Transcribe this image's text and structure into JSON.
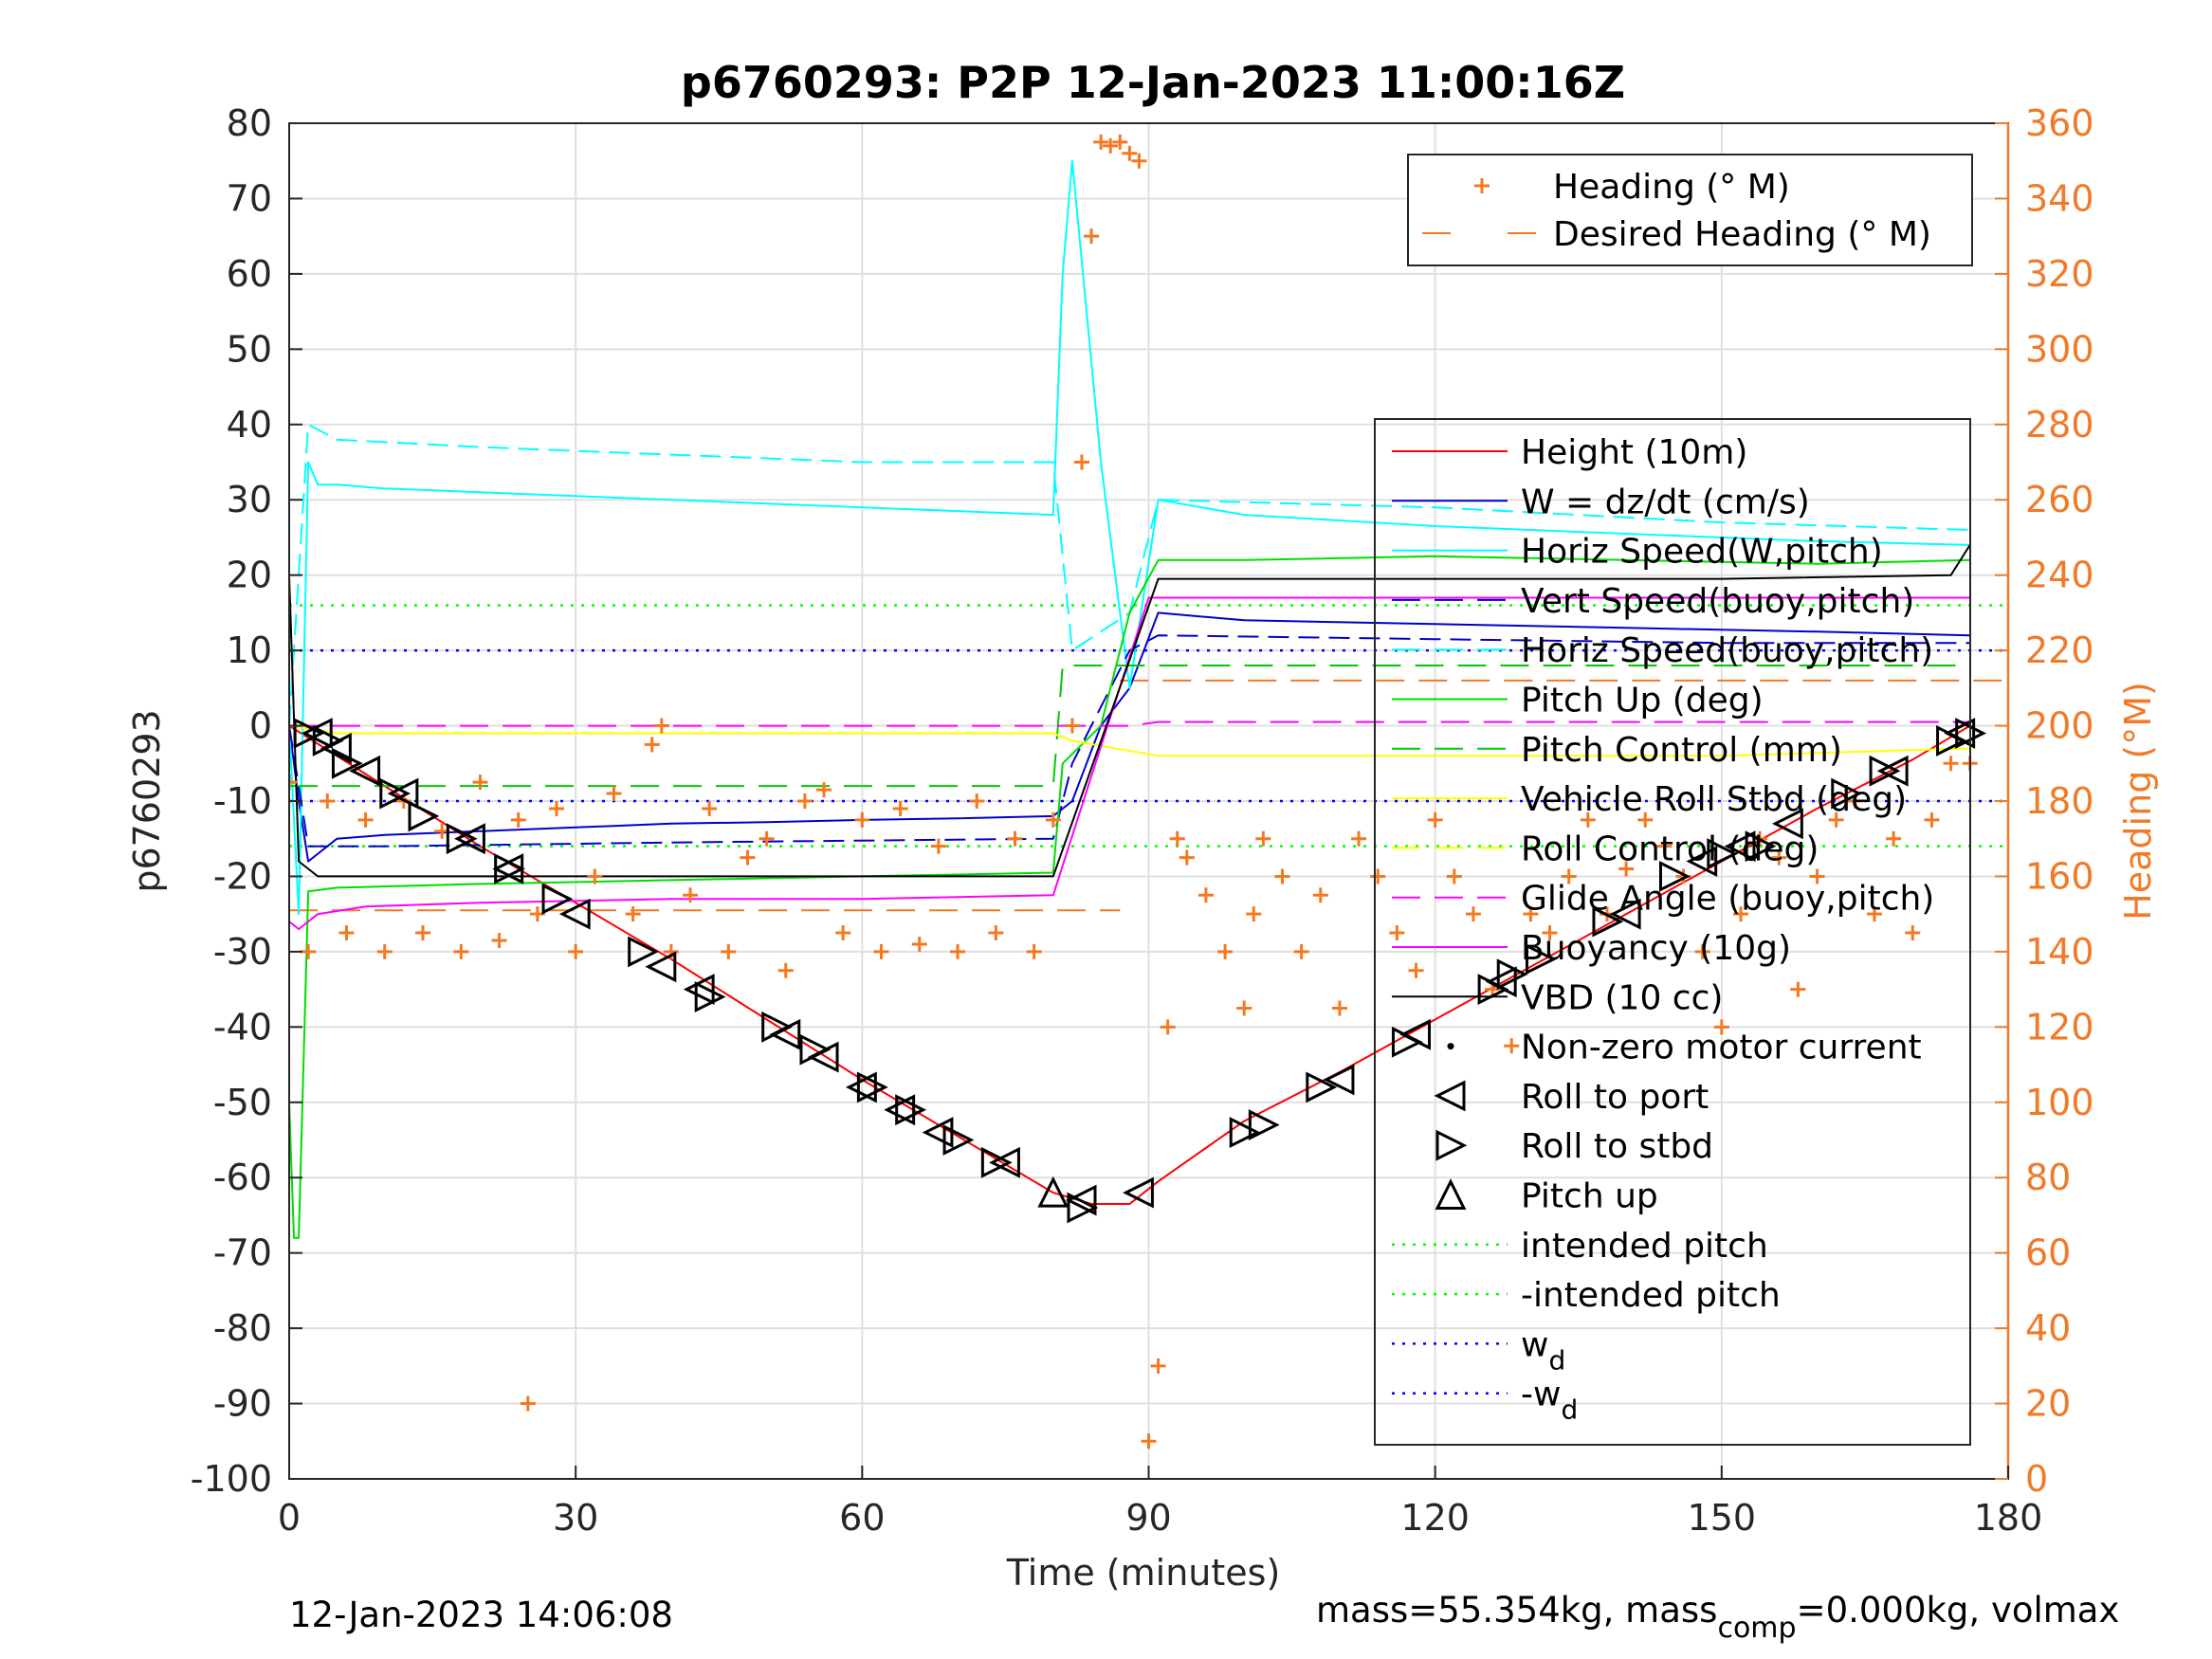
{
  "title": "p6760293: P2P 12-Jan-2023 11:00:16Z",
  "footer_left": "12-Jan-2023 14:06:08",
  "footer_right": {
    "pre": "mass=55.354kg, mass",
    "sub": "comp",
    "post": "=0.000kg, volmax"
  },
  "colors": {
    "heading": "#f57820",
    "height": "#ff0000",
    "w": "#0000cc",
    "horiz_speed_w": "#00dd00",
    "vert_speed_buoy": "#ff00ff",
    "horiz_speed_buoy": "#00ffff",
    "pitch": "#00cc00",
    "roll": "#ffff00",
    "glide": "#ff00ff",
    "buoyancy": "#ff00ff",
    "vbd": "#000000",
    "intended_pitch": "#00ff00",
    "wd": "#0000ff"
  },
  "legend_heading": [
    {
      "label": "Heading (° M)",
      "style": "plus",
      "color": "#f57820"
    },
    {
      "label": "Desired Heading (° M)",
      "style": "dash",
      "color": "#f57820"
    }
  ],
  "legend_main": [
    {
      "label": "Height (10m)",
      "style": "line",
      "color": "#ff0000"
    },
    {
      "label": "W = dz/dt (cm/s)",
      "style": "line",
      "color": "#0000cc"
    },
    {
      "label": "Horiz Speed(W,pitch)",
      "style": "line",
      "color": "#00ffff"
    },
    {
      "label": "Vert Speed(buoy,pitch)",
      "style": "dash",
      "color": "#0000cc"
    },
    {
      "label": "Horiz Speed(buoy,pitch)",
      "style": "dash",
      "color": "#00ffff"
    },
    {
      "label": "Pitch Up (deg)",
      "style": "line",
      "color": "#00dd00"
    },
    {
      "label": "Pitch Control (mm)",
      "style": "dash",
      "color": "#00cc00"
    },
    {
      "label": "Vehicle Roll Stbd (deg)",
      "style": "line",
      "color": "#ffff00"
    },
    {
      "label": "Roll Control (deg)",
      "style": "dash",
      "color": "#ffff00"
    },
    {
      "label": "Glide Angle (buoy,pitch)",
      "style": "dash",
      "color": "#ff00ff"
    },
    {
      "label": "Buoyancy (10g)",
      "style": "line",
      "color": "#ff00ff"
    },
    {
      "label": "VBD (10 cc)",
      "style": "line",
      "color": "#000000"
    },
    {
      "label": "Non-zero motor current",
      "style": "dot",
      "color": "#000000"
    },
    {
      "label": "Roll to port",
      "style": "tri-left",
      "color": "#000000"
    },
    {
      "label": "Roll to stbd",
      "style": "tri-right",
      "color": "#000000"
    },
    {
      "label": "Pitch up",
      "style": "tri-up",
      "color": "#000000"
    },
    {
      "label": "intended pitch",
      "style": "dot-line",
      "color": "#00ff00"
    },
    {
      "label": "-intended pitch",
      "style": "dot-line",
      "color": "#00ff00"
    },
    {
      "label": "w",
      "sub": "d",
      "style": "dot-line",
      "color": "#0000ff"
    },
    {
      "label": "-w",
      "sub": "d",
      "style": "dot-line",
      "color": "#0000ff"
    }
  ],
  "chart_data": {
    "type": "line",
    "title": "p6760293: P2P 12-Jan-2023 11:00:16Z",
    "xlabel": "Time (minutes)",
    "ylabel": "p6760293",
    "y2label": "Heading (°M)",
    "xlim": [
      0,
      180
    ],
    "ylim": [
      -100,
      80
    ],
    "y2lim": [
      0,
      360
    ],
    "xticks": [
      0,
      30,
      60,
      90,
      120,
      150,
      180
    ],
    "yticks": [
      -100,
      -90,
      -80,
      -70,
      -60,
      -50,
      -40,
      -30,
      -20,
      -10,
      0,
      10,
      20,
      30,
      40,
      50,
      60,
      70,
      80
    ],
    "y2ticks": [
      0,
      20,
      40,
      60,
      80,
      100,
      120,
      140,
      160,
      180,
      200,
      220,
      240,
      260,
      280,
      300,
      320,
      340,
      360
    ],
    "grid": true,
    "legend_placement": "right (inside)",
    "reference_lines": {
      "intended_pitch": 16,
      "neg_intended_pitch": -16,
      "wd": 10,
      "neg_wd": -10,
      "desired_heading_dive": 151,
      "desired_heading_climb": 212
    },
    "series": [
      {
        "name": "Height (10m)",
        "x": [
          0,
          10,
          20,
          30,
          40,
          50,
          60,
          70,
          80,
          84,
          88,
          91,
          100,
          110,
          120,
          130,
          140,
          150,
          160,
          170,
          176
        ],
        "values": [
          0,
          -8,
          -16,
          -23.5,
          -31,
          -39,
          -47,
          -54.5,
          -62,
          -63.5,
          -63.5,
          -60.5,
          -52.5,
          -46,
          -39,
          -32,
          -25,
          -18,
          -11,
          -4.5,
          0
        ]
      },
      {
        "name": "W = dz/dt (cm/s)",
        "x": [
          0,
          1,
          2,
          5,
          10,
          20,
          30,
          40,
          50,
          60,
          70,
          80,
          82,
          85,
          88,
          91,
          100,
          120,
          140,
          160,
          176
        ],
        "values": [
          0,
          -10,
          -18,
          -15,
          -14.5,
          -14,
          -13.5,
          -13,
          -12.8,
          -12.5,
          -12.3,
          -12,
          -10,
          0,
          5,
          15,
          14,
          13.5,
          13,
          12.5,
          12
        ]
      },
      {
        "name": "Horiz Speed(W,pitch)",
        "x": [
          0,
          1,
          2,
          3,
          5,
          10,
          20,
          30,
          40,
          50,
          60,
          70,
          80,
          81,
          82,
          85,
          88,
          91,
          100,
          120,
          140,
          160,
          176
        ],
        "values": [
          0,
          -25,
          35,
          32,
          32,
          31.5,
          31,
          30.5,
          30,
          29.5,
          29,
          28.5,
          28,
          60,
          75,
          35,
          5,
          30,
          28,
          26.5,
          25.5,
          24.5,
          24
        ]
      },
      {
        "name": "Vert Speed(buoy,pitch)",
        "x": [
          0,
          2,
          10,
          40,
          80,
          82,
          88,
          91,
          120,
          150,
          176
        ],
        "values": [
          0,
          -16,
          -16,
          -15.5,
          -15,
          -5,
          10,
          12,
          11.5,
          11,
          11
        ]
      },
      {
        "name": "Horiz Speed(buoy,pitch)",
        "x": [
          0,
          2,
          5,
          20,
          40,
          60,
          80,
          82,
          88,
          91,
          120,
          150,
          176
        ],
        "values": [
          0,
          40,
          38,
          37,
          36,
          35,
          35,
          10,
          15,
          30,
          29,
          27,
          26
        ]
      },
      {
        "name": "Pitch Up (deg)",
        "x": [
          0,
          0.5,
          1,
          2,
          5,
          20,
          40,
          60,
          80,
          81,
          85,
          88,
          91,
          100,
          120,
          140,
          160,
          176
        ],
        "values": [
          -50,
          -68,
          -68,
          -22,
          -21.5,
          -21,
          -20.5,
          -20,
          -19.5,
          -5,
          0,
          15,
          22,
          22,
          22.5,
          22,
          21.5,
          22
        ]
      },
      {
        "name": "Pitch Control (mm)",
        "x": [
          0,
          2,
          80,
          81,
          91,
          176
        ],
        "values": [
          -8,
          -8,
          -8,
          8,
          8,
          8
        ]
      },
      {
        "name": "Vehicle Roll Stbd (deg)",
        "x": [
          0,
          5,
          20,
          40,
          60,
          80,
          82,
          91,
          120,
          150,
          176
        ],
        "values": [
          0,
          -1,
          -1,
          -1,
          -1,
          -1,
          -2,
          -4,
          -4,
          -4,
          -3
        ]
      },
      {
        "name": "Glide Angle (buoy,pitch)",
        "x": [
          0,
          2,
          80,
          82,
          88,
          91,
          176
        ],
        "values": [
          0,
          0,
          0,
          0,
          0,
          0.5,
          0.5
        ]
      },
      {
        "name": "Buoyancy (10g)",
        "x": [
          0,
          1,
          3,
          8,
          20,
          40,
          60,
          80,
          90,
          120,
          150,
          176
        ],
        "values": [
          -26,
          -27,
          -25,
          -24,
          -23.5,
          -23,
          -23,
          -22.5,
          17,
          17,
          17,
          17
        ]
      },
      {
        "name": "VBD (10 cc)",
        "x": [
          0,
          1,
          3,
          10,
          40,
          80,
          91,
          120,
          150,
          174,
          176
        ],
        "values": [
          20,
          -18,
          -20,
          -20,
          -20,
          -20,
          19.5,
          19.5,
          19.5,
          20,
          24
        ]
      },
      {
        "name": "Heading (° M)",
        "axis": "right",
        "x": [
          0,
          2,
          4,
          6,
          8,
          10,
          12,
          14,
          16,
          18,
          20,
          22,
          24,
          25,
          26,
          28,
          30,
          32,
          34,
          36,
          38,
          39,
          40,
          42,
          44,
          46,
          48,
          50,
          52,
          54,
          56,
          58,
          60,
          62,
          64,
          66,
          68,
          70,
          72,
          74,
          76,
          78,
          80,
          82,
          83,
          84,
          85,
          86,
          87,
          88,
          89,
          90,
          91,
          92,
          93,
          94,
          96,
          98,
          100,
          101,
          102,
          104,
          106,
          108,
          110,
          112,
          114,
          116,
          118,
          120,
          122,
          124,
          126,
          128,
          130,
          132,
          134,
          136,
          138,
          140,
          142,
          144,
          146,
          148,
          150,
          152,
          154,
          156,
          158,
          160,
          162,
          164,
          166,
          168,
          170,
          172,
          174,
          176
        ],
        "values": [
          185,
          140,
          180,
          145,
          175,
          140,
          180,
          145,
          172,
          140,
          185,
          143,
          175,
          20,
          150,
          178,
          140,
          160,
          182,
          150,
          195,
          200,
          140,
          155,
          178,
          140,
          165,
          170,
          135,
          180,
          183,
          145,
          175,
          140,
          178,
          142,
          168,
          140,
          180,
          145,
          170,
          140,
          175,
          200,
          270,
          330,
          355,
          354,
          355,
          352,
          350,
          10,
          30,
          120,
          170,
          165,
          155,
          140,
          125,
          150,
          170,
          160,
          140,
          155,
          125,
          170,
          160,
          145,
          135,
          175,
          160,
          150,
          130,
          115,
          150,
          145,
          160,
          175,
          150,
          162,
          175,
          168,
          160,
          140,
          120,
          150,
          170,
          165,
          130,
          160,
          175,
          180,
          150,
          170,
          145,
          175,
          190,
          190
        ]
      }
    ],
    "markers": {
      "roll_to_port": [
        [
          3,
          -1
        ],
        [
          5,
          -3
        ],
        [
          8,
          -6
        ],
        [
          12,
          -9
        ],
        [
          19,
          -15
        ],
        [
          23,
          -19
        ],
        [
          30,
          -25
        ],
        [
          39,
          -32
        ],
        [
          43,
          -35
        ],
        [
          52,
          -41
        ],
        [
          56,
          -44
        ],
        [
          60,
          -48
        ],
        [
          64,
          -51
        ],
        [
          68,
          -54
        ],
        [
          75,
          -58
        ],
        [
          83,
          -63
        ],
        [
          89,
          -62
        ],
        [
          110,
          -47
        ],
        [
          118,
          -41
        ],
        [
          127,
          -34
        ],
        [
          140,
          -25
        ],
        [
          148,
          -18
        ],
        [
          152,
          -16
        ],
        [
          157,
          -13
        ],
        [
          168,
          -6
        ],
        [
          175,
          -1
        ]
      ],
      "roll_to_stbd": [
        [
          2,
          -1
        ],
        [
          4,
          -2
        ],
        [
          6,
          -5
        ],
        [
          11,
          -9
        ],
        [
          14,
          -12
        ],
        [
          18,
          -15
        ],
        [
          23,
          -19
        ],
        [
          28,
          -23
        ],
        [
          37,
          -30
        ],
        [
          44,
          -36
        ],
        [
          51,
          -40
        ],
        [
          55,
          -43
        ],
        [
          61,
          -48
        ],
        [
          65,
          -51
        ],
        [
          70,
          -55
        ],
        [
          74,
          -58
        ],
        [
          83,
          -64
        ],
        [
          100,
          -54
        ],
        [
          102,
          -53
        ],
        [
          108,
          -48
        ],
        [
          117,
          -42
        ],
        [
          126,
          -35
        ],
        [
          128,
          -33
        ],
        [
          131,
          -31
        ],
        [
          138,
          -26
        ],
        [
          145,
          -20
        ],
        [
          150,
          -17
        ],
        [
          154,
          -16
        ],
        [
          163,
          -9
        ],
        [
          167,
          -6
        ],
        [
          174,
          -2
        ],
        [
          176,
          -1
        ]
      ],
      "pitch_up": [
        [
          80,
          -62
        ]
      ]
    }
  }
}
